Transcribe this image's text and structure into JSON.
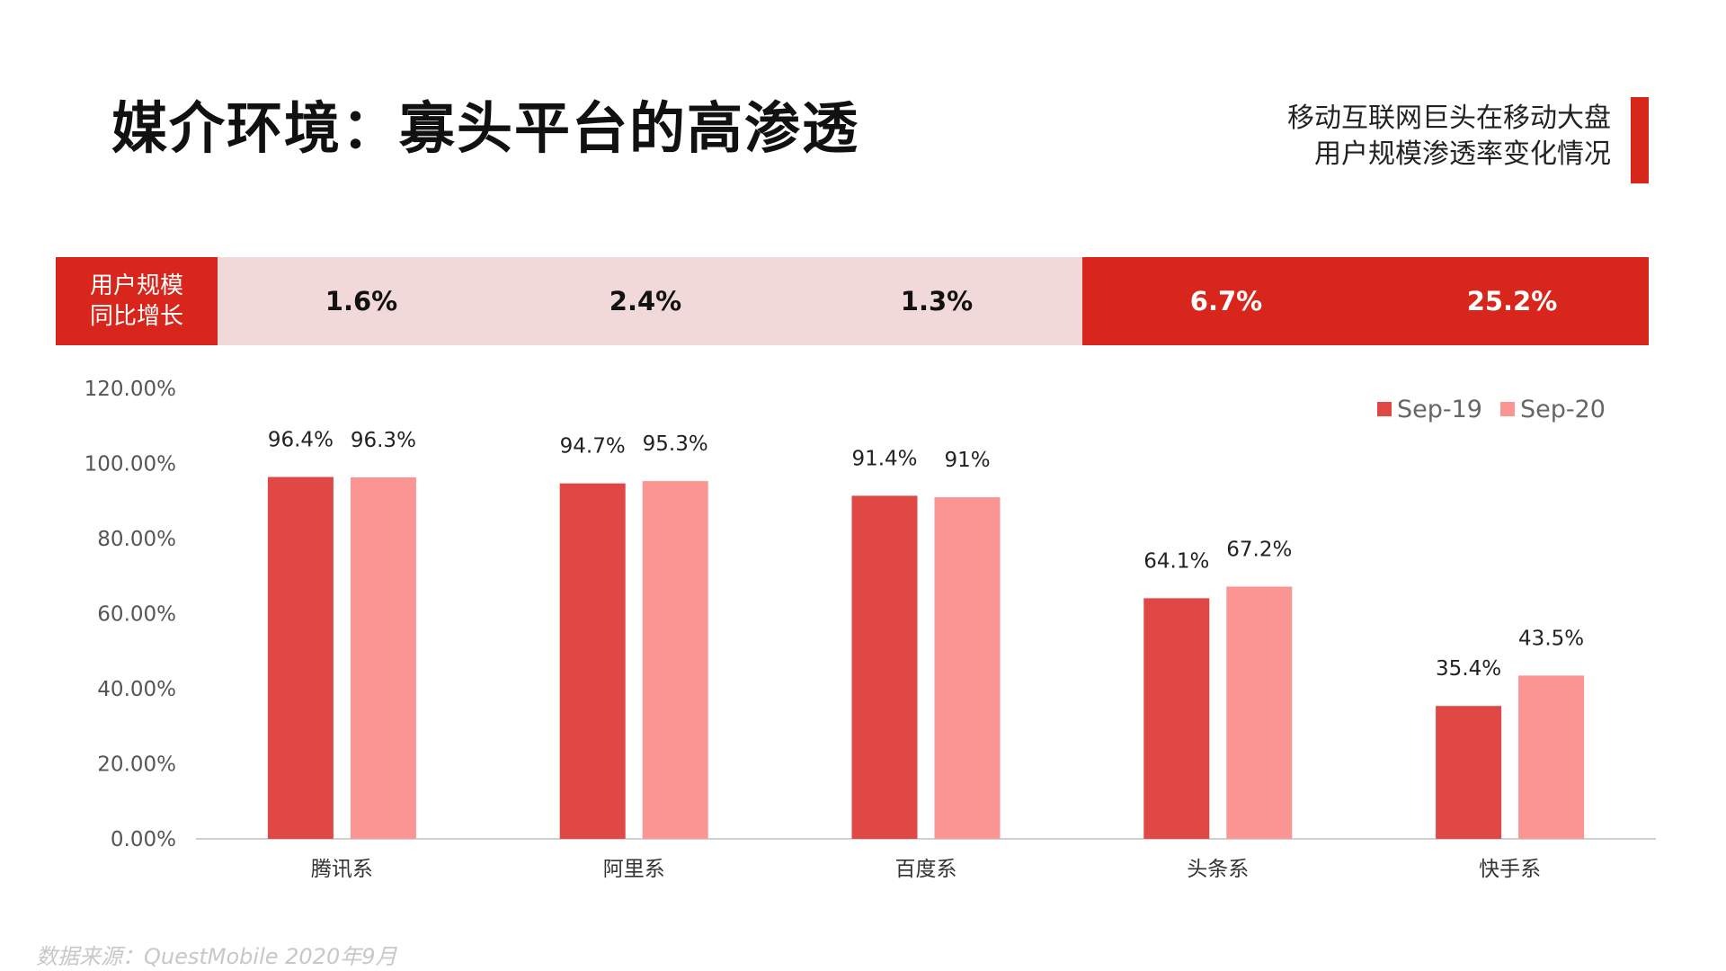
{
  "header": {
    "title": "媒介环境：寡头平台的高渗透",
    "subtitle_line1": "移动互联网巨头在移动大盘",
    "subtitle_line2": "用户规模渗透率变化情况"
  },
  "growth": {
    "label_line1": "用户规模",
    "label_line2": "同比增长",
    "values": [
      "1.6%",
      "2.4%",
      "1.3%",
      "6.7%",
      "25.2%"
    ]
  },
  "colors": {
    "accent": "#d9261c",
    "band_light": "#f1d9d9",
    "series_1": "#e04845",
    "series_2": "#fa9593"
  },
  "chart_data": {
    "type": "bar",
    "categories": [
      "腾讯系",
      "阿里系",
      "百度系",
      "头条系",
      "快手系"
    ],
    "series": [
      {
        "name": "Sep-19",
        "values": [
          96.4,
          94.7,
          91.4,
          64.1,
          35.4
        ],
        "labels": [
          "96.4%",
          "94.7%",
          "91.4%",
          "64.1%",
          "35.4%"
        ]
      },
      {
        "name": "Sep-20",
        "values": [
          96.3,
          95.3,
          91.0,
          67.2,
          43.5
        ],
        "labels": [
          "96.3%",
          "95.3%",
          "91%",
          "67.2%",
          "43.5%"
        ]
      }
    ],
    "ylim": [
      0,
      120
    ],
    "yticks": [
      "0.00%",
      "20.00%",
      "40.00%",
      "60.00%",
      "80.00%",
      "100.00%",
      "120.00%"
    ],
    "grid": false,
    "legend_position": "top-right"
  },
  "footer": {
    "source": "数据来源：QuestMobile  2020年9月"
  }
}
